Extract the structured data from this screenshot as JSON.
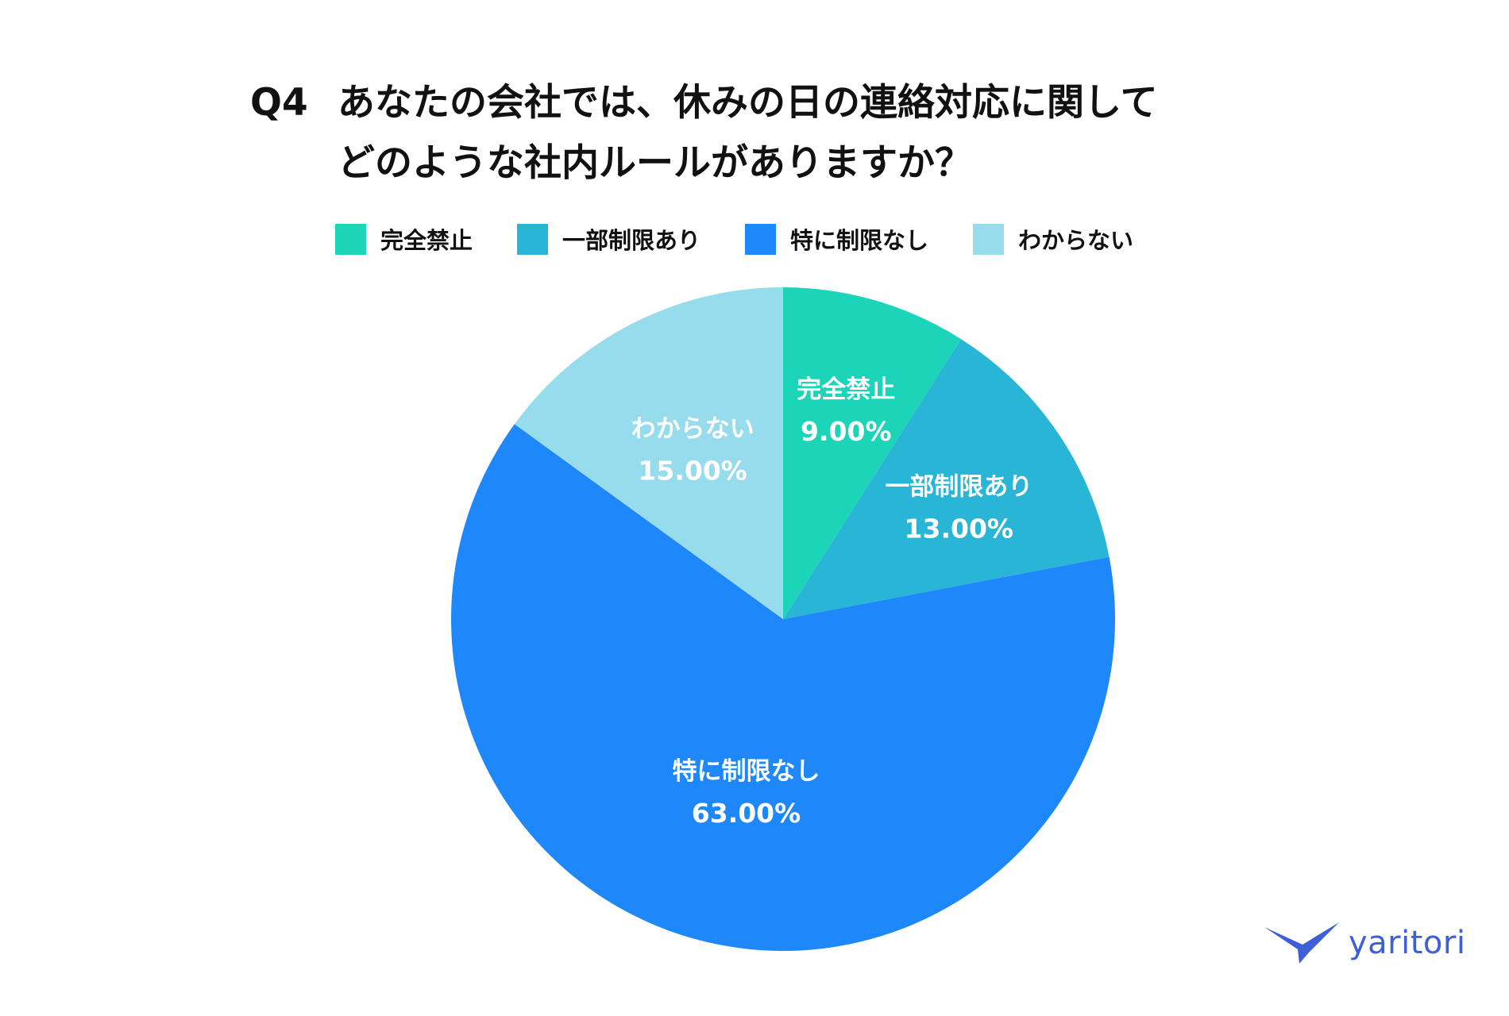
{
  "title": {
    "q": "Q4",
    "line1": "あなたの会社では、休みの日の連絡対応に関して",
    "line2": "どのような社内ルールがありますか？"
  },
  "chart_data": {
    "type": "pie",
    "categories": [
      "完全禁止",
      "一部制限あり",
      "特に制限なし",
      "わからない"
    ],
    "values": [
      9.0,
      13.0,
      63.0,
      15.0
    ],
    "value_labels": [
      "9.00%",
      "13.00%",
      "63.00%",
      "15.00%"
    ],
    "colors": [
      "#1cd4b8",
      "#29b5d6",
      "#1e88fb",
      "#96dcec"
    ],
    "legend_position": "top",
    "start_angle": "12 o'clock",
    "direction": "clockwise"
  },
  "logo": {
    "text": "yaritori",
    "color": "#3f5fd8",
    "icon": "bird-icon"
  }
}
